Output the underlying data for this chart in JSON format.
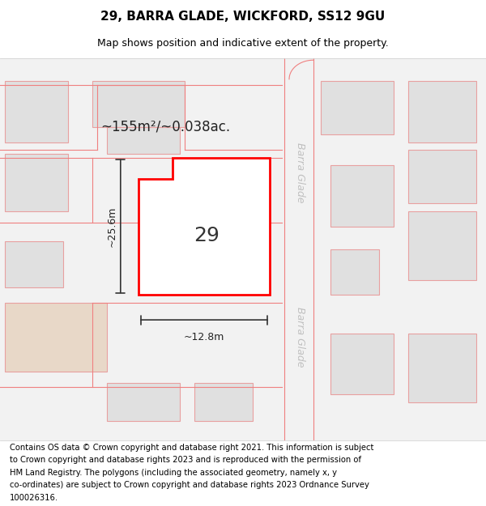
{
  "title_line1": "29, BARRA GLADE, WICKFORD, SS12 9GU",
  "title_line2": "Map shows position and indicative extent of the property.",
  "footer_lines": [
    "Contains OS data © Crown copyright and database right 2021. This information is subject",
    "to Crown copyright and database rights 2023 and is reproduced with the permission of",
    "HM Land Registry. The polygons (including the associated geometry, namely x, y",
    "co-ordinates) are subject to Crown copyright and database rights 2023 Ordnance Survey",
    "100026316."
  ],
  "area_label": "~155m²/~0.038ac.",
  "width_label": "~12.8m",
  "height_label": "~25.6m",
  "plot_number": "29",
  "street_label_upper": "Barra Glade",
  "street_label_lower": "Barra Glade",
  "bg_color": "#ffffff",
  "plot_outline": "#ff0000",
  "neighbor_fill": "#e0e0e0",
  "neighbor_outline": "#e8a0a0",
  "road_line_color": "#f08080",
  "beige_fill": "#e8d8c8",
  "dim_line_color": "#333333",
  "street_label_color": "#c0c0c0",
  "title_fontsize": 11,
  "subtitle_fontsize": 9,
  "footer_fontsize": 7.2,
  "area_fontsize": 12,
  "plot_num_fontsize": 18,
  "dim_fontsize": 9
}
